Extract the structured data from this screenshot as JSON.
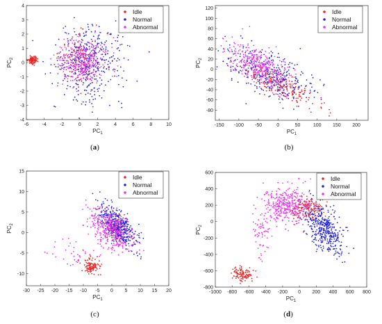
{
  "colors": {
    "Idle": "#ee2222",
    "Normal": "#2222dd",
    "Abnormal": "#ee33ee"
  },
  "chart_data": [
    {
      "type": "scatter",
      "panel_label": "(a)",
      "panel_letter": "a",
      "panel_bold": true,
      "xlabel": "PC",
      "xlabel_sub": "1",
      "ylabel": "PC",
      "ylabel_sub": "2",
      "xlim": [
        -6,
        10
      ],
      "ylim": [
        -4,
        4
      ],
      "xticks": [
        -6,
        -4,
        -2,
        0,
        2,
        4,
        6,
        8,
        10
      ],
      "yticks": [
        -4,
        -3,
        -2,
        -1,
        0,
        1,
        2,
        3,
        4
      ],
      "legend": "top-right",
      "series": [
        {
          "name": "Idle",
          "clusters": [
            {
              "cx": -5.3,
              "cy": 0.15,
              "sx": 0.25,
              "sy": 0.15,
              "n": 90
            },
            {
              "cx": 0.0,
              "cy": 0.2,
              "sx": 1.1,
              "sy": 0.9,
              "n": 140
            }
          ]
        },
        {
          "name": "Normal",
          "clusters": [
            {
              "cx": 1.0,
              "cy": 0.0,
              "sx": 2.0,
              "sy": 1.3,
              "n": 380
            }
          ]
        },
        {
          "name": "Abnormal",
          "clusters": [
            {
              "cx": 0.3,
              "cy": 0.1,
              "sx": 1.4,
              "sy": 0.8,
              "n": 330
            }
          ]
        }
      ]
    },
    {
      "type": "scatter",
      "panel_label": "(b)",
      "panel_letter": "b",
      "panel_bold": false,
      "xlabel": "PC",
      "xlabel_sub": "1",
      "ylabel": "PC",
      "ylabel_sub": "2",
      "xlim": [
        -160,
        230
      ],
      "ylim": [
        -100,
        125
      ],
      "xticks": [
        -150,
        -100,
        -50,
        0,
        50,
        100,
        150,
        200
      ],
      "yticks": [
        -80,
        -60,
        -40,
        -20,
        0,
        20,
        40,
        60,
        80,
        100,
        120
      ],
      "legend": "top-right",
      "series": [
        {
          "name": "Idle",
          "clusters": [
            {
              "cx": 0,
              "cy": -30,
              "sx": 45,
              "sy": 20,
              "n": 200,
              "rho": -0.8
            }
          ]
        },
        {
          "name": "Normal",
          "clusters": [
            {
              "cx": -20,
              "cy": -10,
              "sx": 55,
              "sy": 28,
              "n": 320,
              "rho": -0.6
            }
          ]
        },
        {
          "name": "Abnormal",
          "clusters": [
            {
              "cx": -50,
              "cy": 10,
              "sx": 40,
              "sy": 22,
              "n": 330,
              "rho": -0.6
            }
          ]
        }
      ]
    },
    {
      "type": "scatter",
      "panel_label": "(c)",
      "panel_letter": "c",
      "panel_bold": false,
      "xlabel": "PC",
      "xlabel_sub": "1",
      "ylabel": "PC",
      "ylabel_sub": "2",
      "xlim": [
        -30,
        20
      ],
      "ylim": [
        -13,
        15
      ],
      "xticks": [
        -30,
        -25,
        -20,
        -15,
        -10,
        -5,
        0,
        5,
        10,
        15,
        20
      ],
      "yticks": [
        -10,
        -5,
        0,
        5,
        10,
        15
      ],
      "legend": "top-right",
      "series": [
        {
          "name": "Idle",
          "clusters": [
            {
              "cx": -7,
              "cy": -8.3,
              "sx": 1.5,
              "sy": 0.9,
              "n": 110
            },
            {
              "cx": 1.0,
              "cy": 1.5,
              "sx": 1.5,
              "sy": 1.5,
              "n": 60
            }
          ]
        },
        {
          "name": "Normal",
          "clusters": [
            {
              "cx": 2,
              "cy": 1.5,
              "sx": 3.0,
              "sy": 2.4,
              "n": 420,
              "rho": -0.6
            }
          ]
        },
        {
          "name": "Abnormal",
          "clusters": [
            {
              "cx": 0,
              "cy": 0.5,
              "sx": 4.0,
              "sy": 2.6,
              "n": 360,
              "rho": -0.5
            },
            {
              "cx": -14,
              "cy": -5,
              "sx": 4.5,
              "sy": 2.0,
              "n": 40
            }
          ]
        }
      ]
    },
    {
      "type": "scatter",
      "panel_label": "(d)",
      "panel_letter": "d",
      "panel_bold": true,
      "xlabel": "PC",
      "xlabel_sub": "1",
      "ylabel": "PC",
      "ylabel_sub": "2",
      "xlim": [
        -1000,
        800
      ],
      "ylim": [
        -800,
        600
      ],
      "xticks": [
        -1000,
        -800,
        -600,
        -400,
        -200,
        0,
        200,
        400,
        600,
        800
      ],
      "yticks": [
        -800,
        -600,
        -400,
        -200,
        0,
        200,
        400,
        600
      ],
      "legend": "top-right",
      "series": [
        {
          "name": "Idle",
          "clusters": [
            {
              "cx": -680,
              "cy": -640,
              "sx": 60,
              "sy": 45,
              "n": 110
            },
            {
              "cx": 100,
              "cy": 160,
              "sx": 90,
              "sy": 60,
              "n": 160
            }
          ]
        },
        {
          "name": "Normal",
          "clusters": [
            {
              "cx": 300,
              "cy": -100,
              "sx": 110,
              "sy": 150,
              "n": 400,
              "rho": -0.5
            }
          ]
        },
        {
          "name": "Abnormal",
          "clusters": [
            {
              "cx": -150,
              "cy": 200,
              "sx": 140,
              "sy": 110,
              "n": 360
            },
            {
              "cx": -450,
              "cy": -150,
              "sx": 60,
              "sy": 160,
              "n": 60
            }
          ]
        }
      ]
    }
  ]
}
